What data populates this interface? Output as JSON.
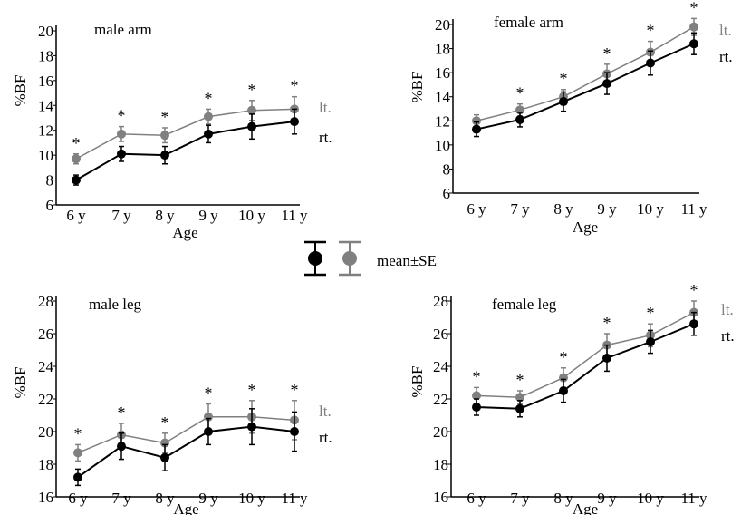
{
  "legend": {
    "label": "mean±SE",
    "colors": {
      "rt": "#000000",
      "lt": "#808080"
    }
  },
  "chart_data": [
    {
      "type": "line",
      "title": "male arm",
      "xlabel": "Age",
      "ylabel": "%BF",
      "categories": [
        "6 y",
        "7 y",
        "8 y",
        "9 y",
        "10 y",
        "11 y"
      ],
      "ylim": [
        6,
        20
      ],
      "yticks": [
        6,
        8,
        10,
        12,
        14,
        16,
        18,
        20
      ],
      "series": [
        {
          "name": "lt.",
          "color": "#808080",
          "values": [
            9.7,
            11.7,
            11.6,
            13.1,
            13.6,
            13.7
          ],
          "se": [
            0.4,
            0.6,
            0.6,
            0.6,
            0.8,
            1.0
          ]
        },
        {
          "name": "rt.",
          "color": "#000000",
          "values": [
            8.0,
            10.1,
            10.0,
            11.7,
            12.3,
            12.7
          ],
          "se": [
            0.4,
            0.6,
            0.7,
            0.7,
            1.0,
            1.0
          ]
        }
      ],
      "annotations": [
        "*",
        "*",
        "*",
        "*",
        "*",
        "*"
      ]
    },
    {
      "type": "line",
      "title": "female arm",
      "xlabel": "Age",
      "ylabel": "%BF",
      "categories": [
        "6 y",
        "7 y",
        "8 y",
        "9 y",
        "10 y",
        "11 y"
      ],
      "ylim": [
        6,
        20
      ],
      "yticks": [
        6,
        8,
        10,
        12,
        14,
        16,
        18,
        20
      ],
      "series": [
        {
          "name": "lt.",
          "color": "#808080",
          "values": [
            12.0,
            12.9,
            14.0,
            15.9,
            17.7,
            19.8
          ],
          "se": [
            0.5,
            0.5,
            0.6,
            0.8,
            0.9,
            0.7
          ]
        },
        {
          "name": "rt.",
          "color": "#000000",
          "values": [
            11.3,
            12.1,
            13.6,
            15.1,
            16.8,
            18.4
          ],
          "se": [
            0.6,
            0.6,
            0.8,
            0.9,
            1.0,
            0.9
          ]
        }
      ],
      "annotations": [
        "",
        "*",
        "*",
        "*",
        "*",
        "*"
      ]
    },
    {
      "type": "line",
      "title": "male leg",
      "xlabel": "Age",
      "ylabel": "%BF",
      "categories": [
        "6 y",
        "7 y",
        "8 y",
        "9 y",
        "10 y",
        "11 y"
      ],
      "ylim": [
        16,
        28
      ],
      "yticks": [
        16,
        18,
        20,
        22,
        24,
        26,
        28
      ],
      "series": [
        {
          "name": "lt.",
          "color": "#808080",
          "values": [
            18.7,
            19.8,
            19.3,
            20.9,
            20.9,
            20.7
          ],
          "se": [
            0.5,
            0.7,
            0.6,
            0.8,
            1.0,
            1.2
          ]
        },
        {
          "name": "rt.",
          "color": "#000000",
          "values": [
            17.2,
            19.1,
            18.4,
            20.0,
            20.3,
            20.0
          ],
          "se": [
            0.5,
            0.8,
            0.8,
            0.8,
            1.1,
            1.2
          ]
        }
      ],
      "annotations": [
        "*",
        "*",
        "*",
        "*",
        "*",
        "*"
      ]
    },
    {
      "type": "line",
      "title": "female leg",
      "xlabel": "Age",
      "ylabel": "%BF",
      "categories": [
        "6 y",
        "7 y",
        "8 y",
        "9 y",
        "10 y",
        "11 y"
      ],
      "ylim": [
        16,
        28
      ],
      "yticks": [
        16,
        18,
        20,
        22,
        24,
        26,
        28
      ],
      "series": [
        {
          "name": "lt.",
          "color": "#808080",
          "values": [
            22.2,
            22.1,
            23.3,
            25.3,
            25.9,
            27.3
          ],
          "se": [
            0.5,
            0.4,
            0.6,
            0.7,
            0.7,
            0.7
          ]
        },
        {
          "name": "rt.",
          "color": "#000000",
          "values": [
            21.5,
            21.4,
            22.5,
            24.5,
            25.5,
            26.6
          ],
          "se": [
            0.5,
            0.5,
            0.7,
            0.8,
            0.7,
            0.7
          ]
        }
      ],
      "annotations": [
        "*",
        "*",
        "*",
        "*",
        "*",
        "*"
      ]
    }
  ]
}
